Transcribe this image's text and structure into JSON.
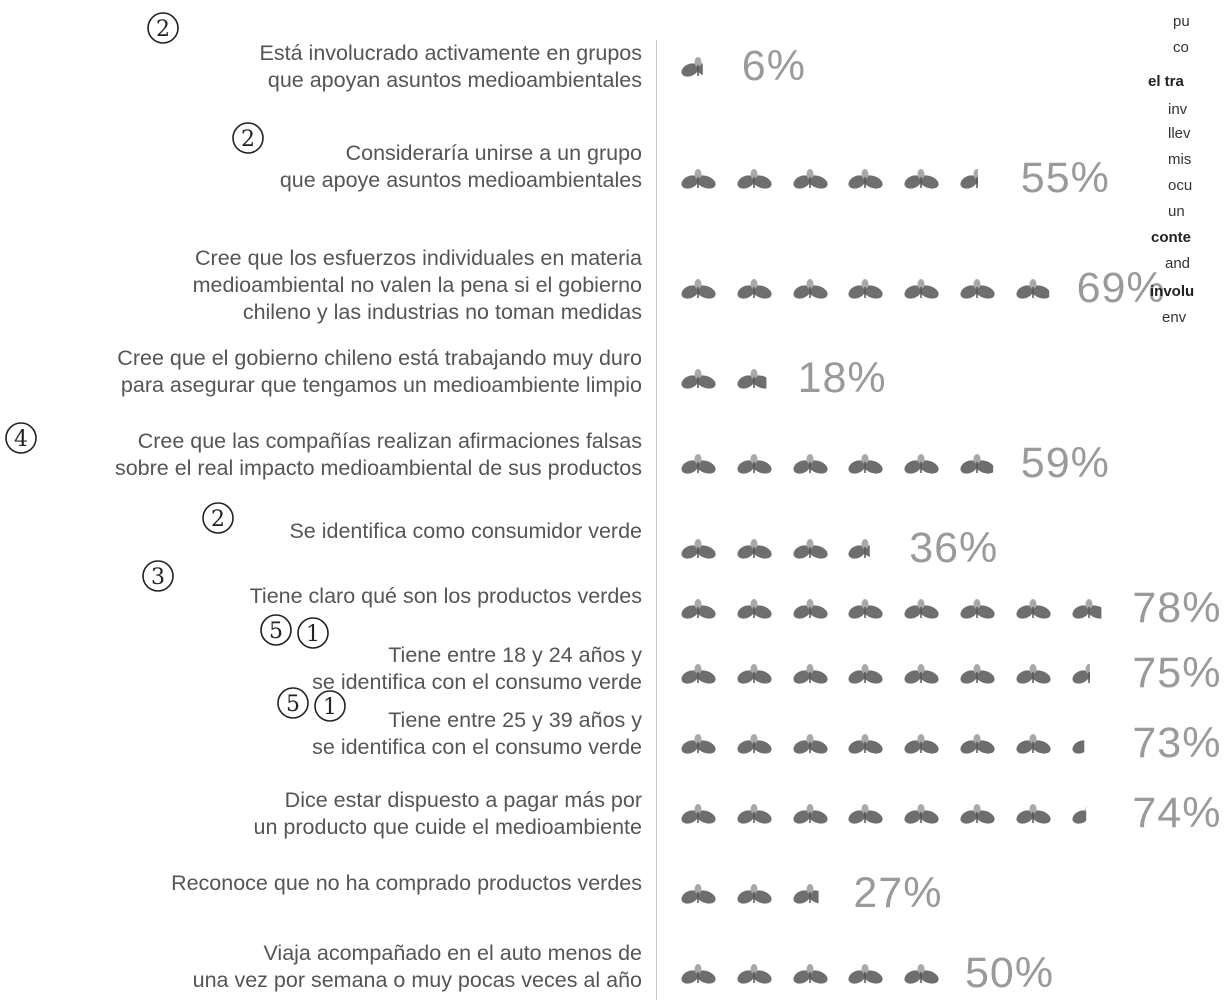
{
  "chart_data": {
    "type": "pictogram-bar",
    "unit_per_icon": 10,
    "rows": [
      {
        "label": "Está involucrado activamente en grupos\nque apoyan asuntos medioambientales",
        "value": 6,
        "value_label": "6%"
      },
      {
        "label": "Consideraría unirse a un grupo\nque apoye asuntos medioambientales",
        "value": 55,
        "value_label": "55%"
      },
      {
        "label": "Cree que los esfuerzos individuales en materia\nmedioambiental no valen la pena si el gobierno\nchileno y las industrias no toman medidas",
        "value": 69,
        "value_label": "69%"
      },
      {
        "label": "Cree que el gobierno chileno está trabajando muy duro\npara asegurar que tengamos un medioambiente limpio",
        "value": 18,
        "value_label": "18%"
      },
      {
        "label": "Cree que las compañías realizan afirmaciones falsas\nsobre el real impacto medioambiental de sus productos",
        "value": 59,
        "value_label": "59%"
      },
      {
        "label": "Se identifica como consumidor verde",
        "value": 36,
        "value_label": "36%"
      },
      {
        "label": "Tiene claro qué son los productos verdes",
        "value": 78,
        "value_label": "78%"
      },
      {
        "label": "Tiene entre 18 y 24 años y\nse identifica con el consumo verde",
        "value": 75,
        "value_label": "75%"
      },
      {
        "label": "Tiene entre 25 y 39 años y\nse identifica con el consumo verde",
        "value": 73,
        "value_label": "73%"
      },
      {
        "label": "Dice estar dispuesto a pagar más por\nun producto que cuide el medioambiente",
        "value": 74,
        "value_label": "74%"
      },
      {
        "label": "Reconoce que no ha comprado productos verdes",
        "value": 27,
        "value_label": "27%"
      },
      {
        "label": "Viaja acompañado en el auto menos de\nuna vez por semana o muy pocas veces al año",
        "value": 50,
        "value_label": "50%"
      }
    ],
    "handwritten_marks": [
      "2",
      "2",
      "4",
      "2",
      "3",
      "5",
      "1",
      "5",
      "1"
    ]
  },
  "side_text": {
    "fragments": [
      "pu",
      "co",
      "el tra",
      "inv",
      "llev",
      "mis",
      "ocu",
      "un",
      "conte",
      "and",
      "involu",
      "env"
    ]
  },
  "colors": {
    "leaf": "#6e6e6e",
    "leaf_light": "#a8a8a8",
    "label": "#555555",
    "pct": "#9a9a9a",
    "divider": "#c8c8c8"
  }
}
